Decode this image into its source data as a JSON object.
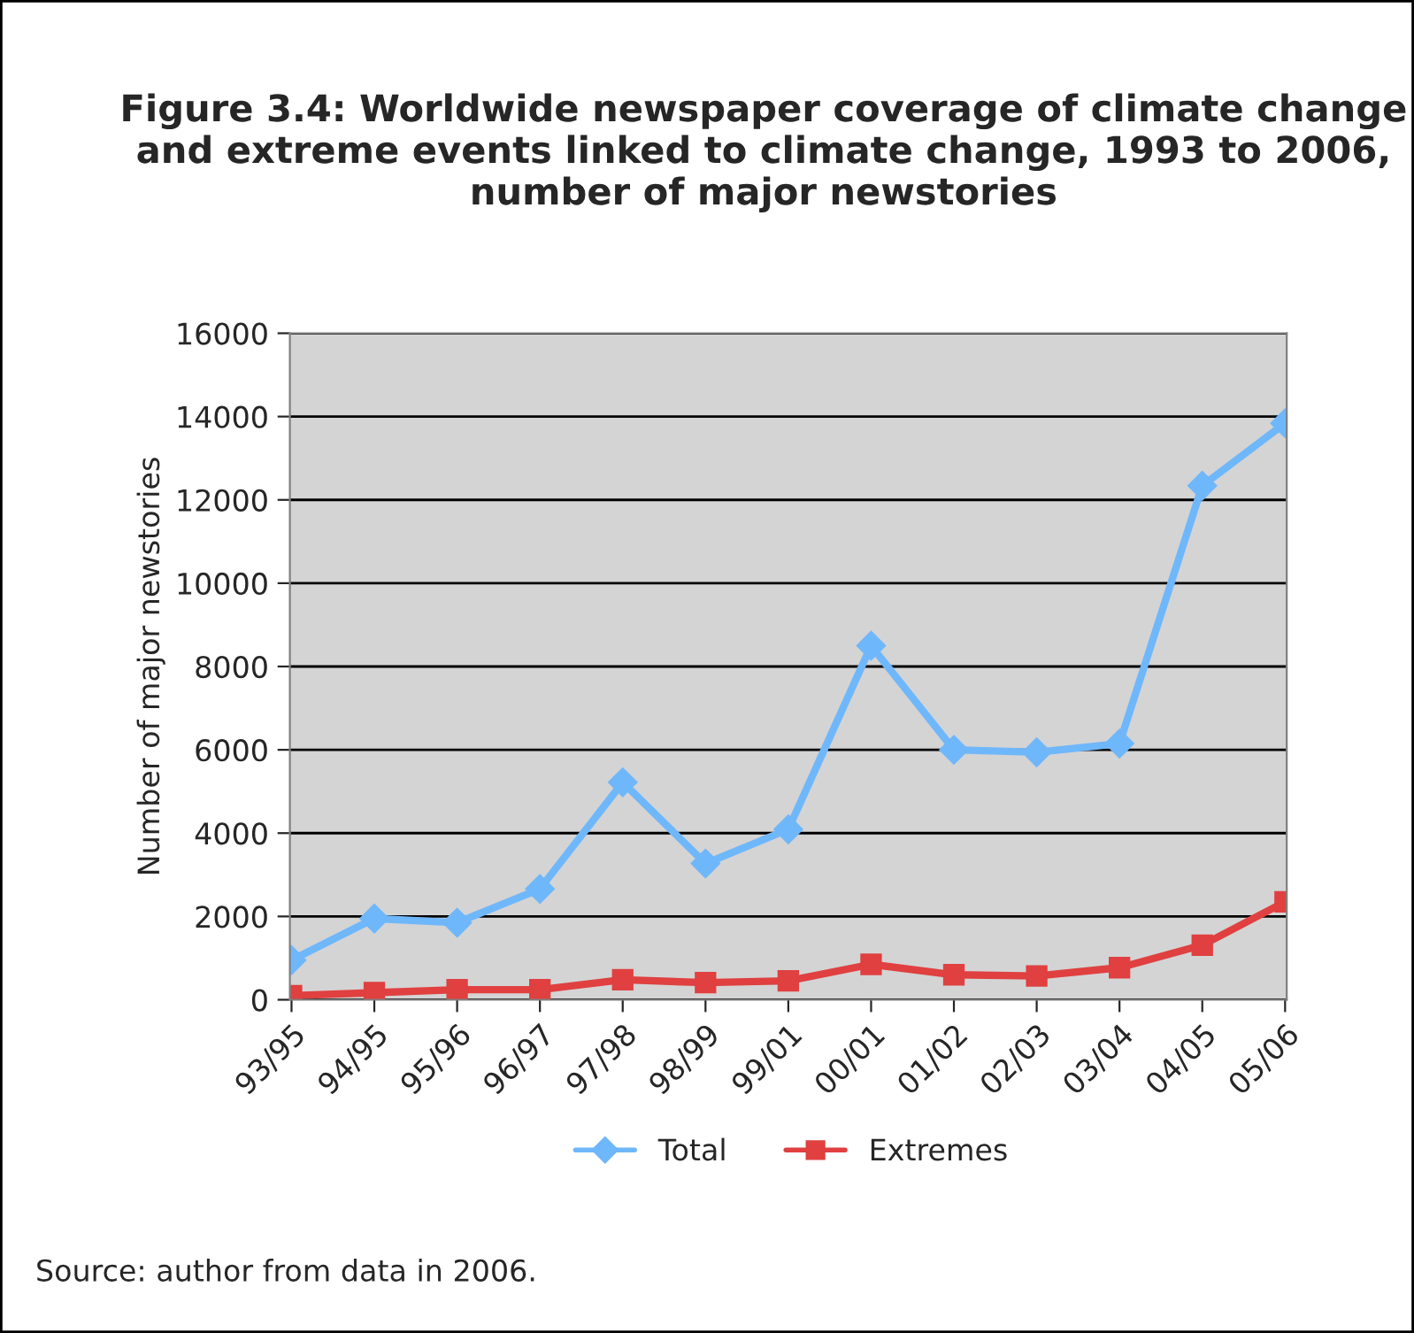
{
  "chart_data": {
    "type": "line",
    "title": "Figure 3.4: Worldwide newspaper coverage of climate change and extreme events linked to climate change, 1993 to 2006, number of major newstories",
    "ylabel": "Number of major newstories",
    "categories": [
      "93/95",
      "94/95",
      "95/96",
      "96/97",
      "97/98",
      "98/99",
      "99/01",
      "00/01",
      "01/02",
      "02/03",
      "03/04",
      "04/05",
      "05/06"
    ],
    "series": [
      {
        "name": "Total",
        "color": "#6fb7fb",
        "marker": "diamond",
        "values": [
          950,
          1950,
          1850,
          2660,
          5220,
          3270,
          4090,
          8500,
          6000,
          5940,
          6150,
          12340,
          13840
        ]
      },
      {
        "name": "Extremes",
        "color": "#e04040",
        "marker": "square",
        "values": [
          100,
          170,
          240,
          240,
          480,
          410,
          455,
          850,
          600,
          570,
          770,
          1310,
          2350
        ]
      }
    ],
    "ylim": [
      0,
      16000
    ],
    "yticks": [
      0,
      2000,
      4000,
      6000,
      8000,
      10000,
      12000,
      14000,
      16000
    ],
    "grid": "y",
    "legend": "bottom",
    "line_style": "solid",
    "annotations": [
      "Source: author from data in 2006."
    ]
  }
}
